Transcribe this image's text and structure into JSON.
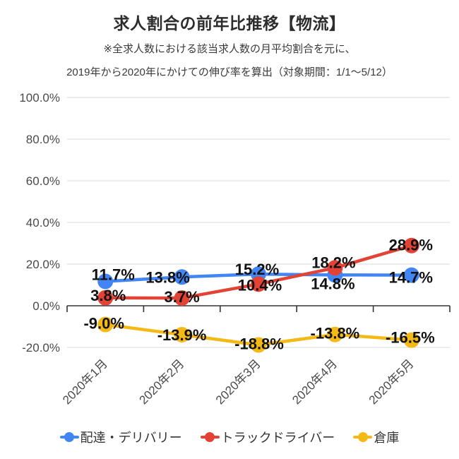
{
  "header": {
    "title": "求人割合の前年比推移【物流】",
    "subtitle_line1": "※全求人数における該当求人数の月平均割合を元に、",
    "subtitle_line2": "2019年から2020年にかけての伸び率を算出（対象期間：1/1〜5/12）"
  },
  "chart_data": {
    "type": "line",
    "categories": [
      "2020年1月",
      "2020年2月",
      "2020年3月",
      "2020年4月",
      "2020年5月"
    ],
    "series": [
      {
        "name": "配達・デリバリー",
        "color": "#4285F4",
        "values": [
          11.7,
          13.8,
          15.2,
          14.8,
          14.7
        ],
        "labels": [
          "11.7%",
          "13.8%",
          "15.2%",
          "14.8%",
          "14.7%"
        ],
        "label_offsets": [
          [
            11,
            -10
          ],
          [
            -20,
            0
          ],
          [
            -2,
            -7
          ],
          [
            -3,
            12
          ],
          [
            -1,
            3
          ]
        ]
      },
      {
        "name": "トラックドライバー",
        "color": "#E24335",
        "values": [
          3.8,
          3.7,
          10.4,
          18.2,
          28.9
        ],
        "labels": [
          "3.8%",
          "3.7%",
          "10.4%",
          "18.2%",
          "28.9%"
        ],
        "label_offsets": [
          [
            4,
            -4
          ],
          [
            0,
            -2
          ],
          [
            2,
            1
          ],
          [
            -2,
            -8
          ],
          [
            -1,
            -1
          ]
        ]
      },
      {
        "name": "倉庫",
        "color": "#F5B915",
        "values": [
          -9.0,
          -13.9,
          -18.8,
          -13.8,
          -16.5
        ],
        "labels": [
          "-9.0%",
          "-13.9%",
          "-18.8%",
          "-13.8%",
          "-16.5%"
        ],
        "label_offsets": [
          [
            -2,
            -2
          ],
          [
            0,
            0
          ],
          [
            1,
            -2
          ],
          [
            0,
            -2
          ],
          [
            -2,
            -4
          ]
        ]
      }
    ],
    "y_axis": {
      "ticks": [
        "100.0%",
        "80.0%",
        "60.0%",
        "40.0%",
        "20.0%",
        "0.0%",
        "-20.0%"
      ],
      "max": 100,
      "min": -20,
      "step": 20
    },
    "grid": true,
    "legend_position": "bottom",
    "colors": {
      "grid": "#d9d9d9",
      "axis_line": "#333333",
      "axis_text": "#4a4a4a",
      "data_label": "#111111",
      "background": "#ffffff"
    }
  }
}
